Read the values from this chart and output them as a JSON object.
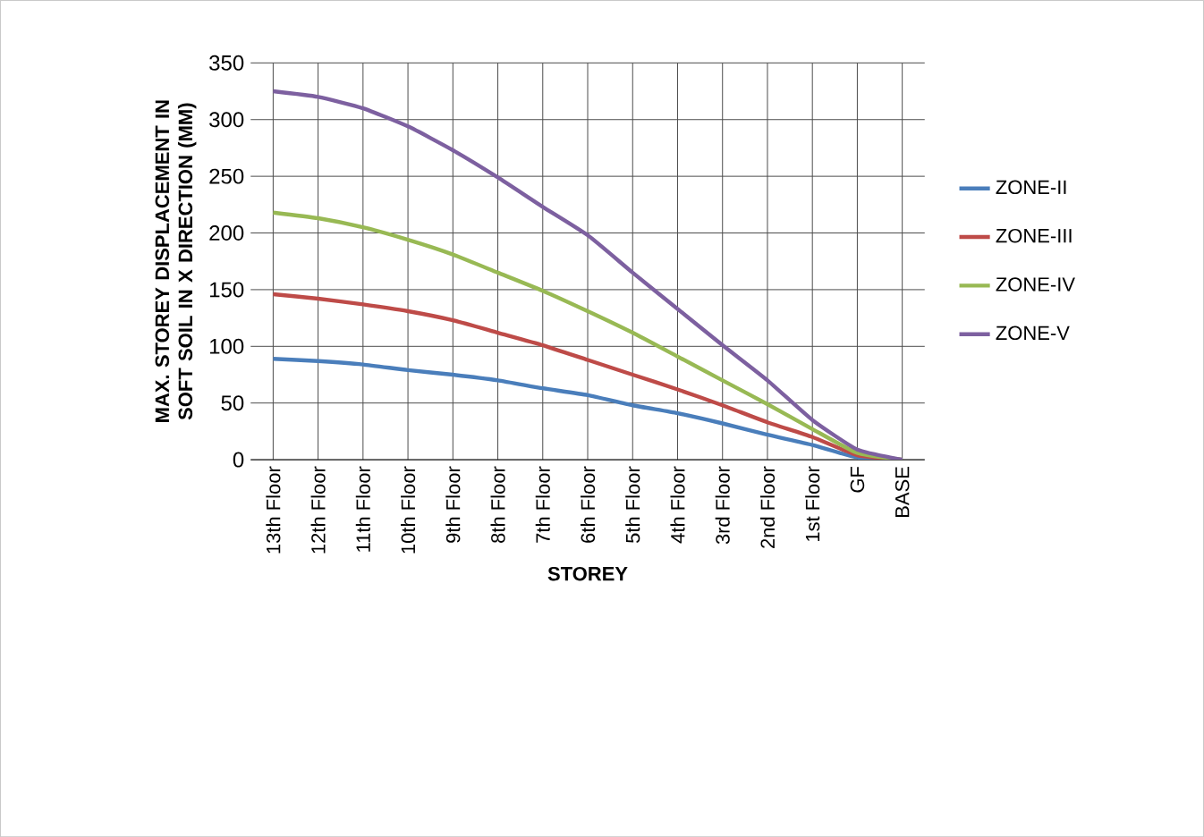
{
  "chart_data": {
    "type": "line",
    "xlabel": "STOREY",
    "ylabel": "MAX. STOREY DISPLACEMENT IN SOFT SOIL IN X DIRECTION (MM)",
    "categories": [
      "13th Floor",
      "12th Floor",
      "11th Floor",
      "10th Floor",
      "9th Floor",
      "8th Floor",
      "7th Floor",
      "6th Floor",
      "5th Floor",
      "4th Floor",
      "3rd Floor",
      "2nd Floor",
      "1st Floor",
      "GF",
      "BASE"
    ],
    "series": [
      {
        "name": "ZONE-II",
        "color": "#4a7ebb",
        "values": [
          89,
          87,
          84,
          79,
          75,
          70,
          63,
          57,
          48,
          41,
          32,
          22,
          13,
          2,
          0
        ]
      },
      {
        "name": "ZONE-III",
        "color": "#be4b48",
        "values": [
          146,
          142,
          137,
          131,
          123,
          112,
          101,
          88,
          75,
          62,
          48,
          33,
          20,
          4,
          0
        ]
      },
      {
        "name": "ZONE-IV",
        "color": "#98b954",
        "values": [
          218,
          213,
          205,
          194,
          181,
          165,
          149,
          131,
          112,
          91,
          70,
          49,
          27,
          6,
          0
        ]
      },
      {
        "name": "ZONE-V",
        "color": "#7d60a0",
        "values": [
          325,
          320,
          310,
          294,
          273,
          249,
          223,
          198,
          165,
          133,
          101,
          70,
          35,
          9,
          0
        ]
      }
    ],
    "ylim": [
      0,
      350
    ],
    "yticks": [
      0,
      50,
      100,
      150,
      200,
      250,
      300,
      350
    ],
    "grid": true,
    "legend": "right",
    "marker": "none",
    "line_style": "solid"
  }
}
